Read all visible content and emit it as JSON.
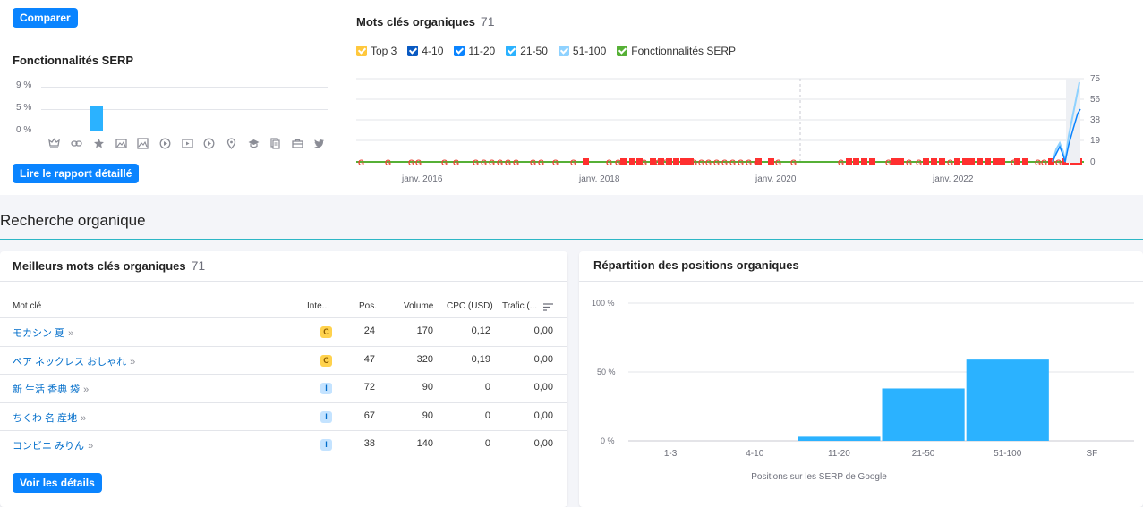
{
  "top": {
    "compare_button": "Comparer",
    "serp_title": "Fonctionnalités SERP",
    "serp_axis": [
      "9 %",
      "5 %",
      "0 %"
    ],
    "serp_bar_value_pct": 5,
    "report_button": "Lire le rapport détaillé",
    "serp_icons": [
      "crown-icon",
      "link-icon",
      "star-icon",
      "image-icon",
      "image-pack-icon",
      "video-icon",
      "video-carousel-icon",
      "play-icon",
      "location-pin-icon",
      "graduation-cap-icon",
      "document-icon",
      "briefcase-icon",
      "twitter-icon"
    ]
  },
  "keywords_chart": {
    "title": "Mots clés organiques",
    "count": "71",
    "legend": [
      {
        "label": "Top 3",
        "color": "#ffc83d"
      },
      {
        "label": "4-10",
        "color": "#0a5ac2"
      },
      {
        "label": "11-20",
        "color": "#0a84ff"
      },
      {
        "label": "21-50",
        "color": "#2bb2ff"
      },
      {
        "label": "51-100",
        "color": "#8fd2ff"
      },
      {
        "label": "Fonctionnalités SERP",
        "color": "#56b036"
      }
    ],
    "y_ticks": [
      "75",
      "56",
      "38",
      "19",
      "0"
    ],
    "x_ticks": [
      "janv. 2016",
      "janv. 2018",
      "janv. 2020",
      "janv. 2022"
    ]
  },
  "section_title": "Recherche organique",
  "top_keywords": {
    "title": "Meilleurs mots clés organiques",
    "count": "71",
    "headers": {
      "keyword": "Mot clé",
      "intent": "Inte...",
      "pos": "Pos.",
      "volume": "Volume",
      "cpc": "CPC (USD)",
      "traffic": "Trafic (..."
    },
    "rows": [
      {
        "keyword": "モカシン 夏",
        "intent": "C",
        "pos": "24",
        "volume": "170",
        "cpc": "0,12",
        "traffic": "0,00"
      },
      {
        "keyword": "ペア ネックレス おしゃれ",
        "intent": "C",
        "pos": "47",
        "volume": "320",
        "cpc": "0,19",
        "traffic": "0,00"
      },
      {
        "keyword": "新 生活 香典 袋",
        "intent": "I",
        "pos": "72",
        "volume": "90",
        "cpc": "0",
        "traffic": "0,00"
      },
      {
        "keyword": "ちくわ 名 産地",
        "intent": "I",
        "pos": "67",
        "volume": "90",
        "cpc": "0",
        "traffic": "0,00"
      },
      {
        "keyword": "コンビニ みりん",
        "intent": "I",
        "pos": "38",
        "volume": "140",
        "cpc": "0",
        "traffic": "0,00"
      }
    ],
    "details_button": "Voir les détails"
  },
  "positions": {
    "title": "Répartition des positions organiques",
    "y_ticks": [
      "100 %",
      "50 %",
      "0 %"
    ],
    "categories": [
      "1-3",
      "4-10",
      "11-20",
      "21-50",
      "51-100",
      "SF"
    ],
    "values_pct": [
      0,
      0,
      3,
      38,
      59,
      0
    ],
    "xlabel": "Positions sur les SERP de Google"
  },
  "colors": {
    "accent": "#0a84ff",
    "bar": "#2bb2ff",
    "commercial": "#ffd24d",
    "informational": "#c4e3ff"
  }
}
